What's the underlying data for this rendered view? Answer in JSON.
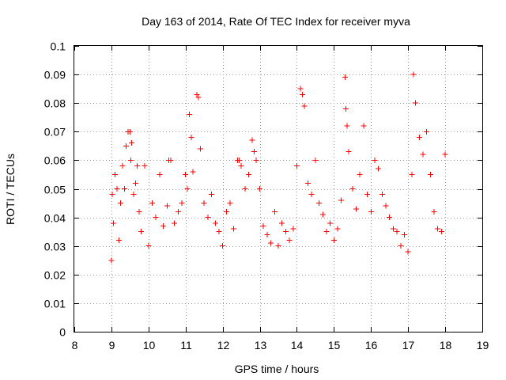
{
  "chart_data": {
    "type": "scatter",
    "title": "Day 163 of 2014, Rate Of TEC Index for receiver myva",
    "xlabel": "GPS time / hours",
    "ylabel": "ROTI / TECUs",
    "xlim": [
      8,
      19
    ],
    "ylim": [
      0,
      0.1
    ],
    "x_ticks": [
      "8",
      "9",
      "10",
      "11",
      "12",
      "13",
      "14",
      "15",
      "16",
      "17",
      "18",
      "19"
    ],
    "y_ticks": [
      "0",
      "0.01",
      "0.02",
      "0.03",
      "0.04",
      "0.05",
      "0.06",
      "0.07",
      "0.08",
      "0.09",
      "0.1"
    ],
    "grid": true,
    "marker": "+",
    "color": "#ff0000",
    "series": [
      {
        "name": "ROTI",
        "x": [
          9.0,
          9.02,
          9.05,
          9.1,
          9.15,
          9.2,
          9.25,
          9.3,
          9.35,
          9.4,
          9.45,
          9.5,
          9.52,
          9.55,
          9.6,
          9.65,
          9.7,
          9.75,
          9.8,
          9.9,
          10.0,
          10.1,
          10.2,
          10.3,
          10.4,
          10.5,
          10.55,
          10.6,
          10.7,
          10.8,
          10.9,
          11.0,
          11.05,
          11.1,
          11.15,
          11.2,
          11.3,
          11.35,
          11.4,
          11.5,
          11.6,
          11.7,
          11.8,
          11.9,
          12.0,
          12.1,
          12.2,
          12.3,
          12.4,
          12.45,
          12.5,
          12.6,
          12.7,
          12.8,
          12.85,
          12.9,
          13.0,
          13.1,
          13.2,
          13.3,
          13.4,
          13.5,
          13.6,
          13.7,
          13.8,
          13.9,
          14.0,
          14.1,
          14.15,
          14.2,
          14.3,
          14.4,
          14.5,
          14.6,
          14.7,
          14.8,
          14.9,
          15.0,
          15.1,
          15.2,
          15.3,
          15.32,
          15.35,
          15.4,
          15.5,
          15.6,
          15.7,
          15.8,
          15.9,
          16.0,
          16.1,
          16.2,
          16.3,
          16.4,
          16.5,
          16.6,
          16.7,
          16.8,
          16.9,
          17.0,
          17.1,
          17.15,
          17.2,
          17.3,
          17.4,
          17.5,
          17.6,
          17.7,
          17.8,
          17.9,
          18.0
        ],
        "y": [
          0.025,
          0.048,
          0.038,
          0.055,
          0.05,
          0.032,
          0.045,
          0.058,
          0.05,
          0.065,
          0.07,
          0.07,
          0.06,
          0.066,
          0.048,
          0.052,
          0.058,
          0.042,
          0.035,
          0.058,
          0.03,
          0.045,
          0.04,
          0.055,
          0.037,
          0.044,
          0.06,
          0.06,
          0.038,
          0.042,
          0.045,
          0.055,
          0.05,
          0.076,
          0.068,
          0.056,
          0.083,
          0.082,
          0.064,
          0.045,
          0.04,
          0.048,
          0.038,
          0.035,
          0.03,
          0.042,
          0.045,
          0.036,
          0.06,
          0.06,
          0.058,
          0.05,
          0.055,
          0.067,
          0.063,
          0.06,
          0.05,
          0.037,
          0.034,
          0.031,
          0.042,
          0.03,
          0.038,
          0.035,
          0.032,
          0.036,
          0.058,
          0.085,
          0.083,
          0.079,
          0.052,
          0.048,
          0.06,
          0.045,
          0.041,
          0.035,
          0.038,
          0.032,
          0.036,
          0.046,
          0.089,
          0.078,
          0.072,
          0.063,
          0.05,
          0.043,
          0.055,
          0.072,
          0.048,
          0.042,
          0.06,
          0.057,
          0.048,
          0.044,
          0.04,
          0.036,
          0.035,
          0.03,
          0.034,
          0.028,
          0.055,
          0.09,
          0.08,
          0.068,
          0.062,
          0.07,
          0.055,
          0.042,
          0.036,
          0.035,
          0.062
        ]
      }
    ]
  }
}
